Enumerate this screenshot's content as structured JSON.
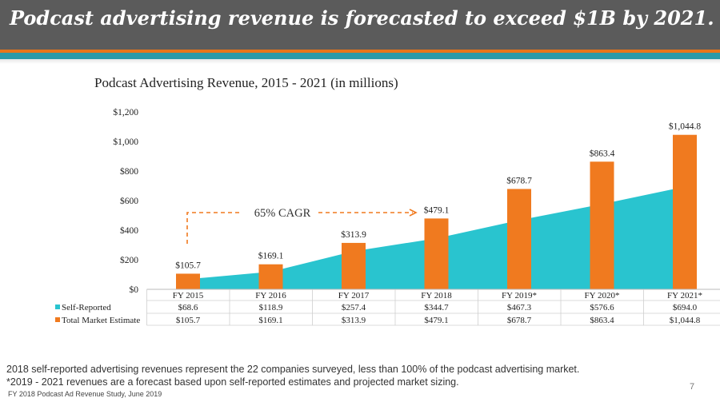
{
  "header": {
    "title": "Podcast advertising revenue is forecasted to exceed $1B by 2021."
  },
  "colors": {
    "header_bg": "#5b5b5b",
    "accent_orange": "#e8751a",
    "accent_teal": "#2a9aa8",
    "self_reported": "#29c4cf",
    "total_market": "#f07a1f"
  },
  "chart_data": {
    "type": "bar",
    "title": "Podcast Advertising Revenue, 2015 - 2021 (in millions)",
    "categories": [
      "FY 2015",
      "FY 2016",
      "FY 2017",
      "FY 2018",
      "FY 2019*",
      "FY 2020*",
      "FY 2021*"
    ],
    "yticks": [
      "$0",
      "$200",
      "$400",
      "$600",
      "$800",
      "$1,000",
      "$1,200"
    ],
    "ylim": [
      0,
      1200
    ],
    "series": [
      {
        "name": "Self-Reported",
        "mark": "area",
        "values": [
          68.6,
          118.9,
          257.4,
          344.7,
          467.3,
          576.6,
          694.0
        ],
        "labels": [
          "$68.6",
          "$118.9",
          "$257.4",
          "$344.7",
          "$467.3",
          "$576.6",
          "$694.0"
        ]
      },
      {
        "name": "Total Market Estimate",
        "mark": "bar",
        "values": [
          105.7,
          169.1,
          313.9,
          479.1,
          678.7,
          863.4,
          1044.8
        ],
        "labels": [
          "$105.7",
          "$169.1",
          "$313.9",
          "$479.1",
          "$678.7",
          "$863.4",
          "$1,044.8"
        ]
      }
    ],
    "annotation": "65% CAGR",
    "grid": false,
    "legend": "data table below chart"
  },
  "footer": {
    "note1": "2018 self-reported advertising revenues represent the 22 companies surveyed, less than 100% of the podcast advertising market.",
    "note2": "*2019 - 2021 revenues are a forecast based upon self-reported estimates and projected market sizing.",
    "source": "FY 2018 Podcast Ad Revenue Study, June 2019",
    "page": "7"
  }
}
